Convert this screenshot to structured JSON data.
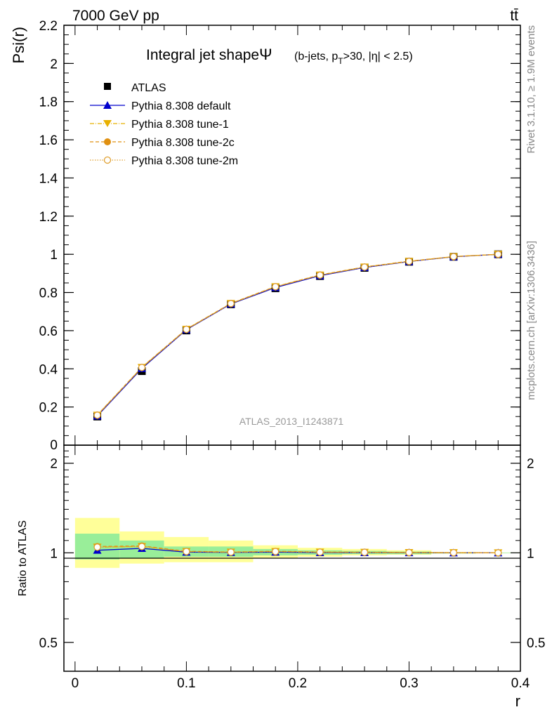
{
  "header": {
    "energy_label": "7000 GeV pp",
    "process_label": "tt̄"
  },
  "side_text": {
    "rivet": "Rivet 3.1.10, ≥ 1.9M events",
    "mcplots": "mcplots.cern.ch [arXiv:1306.3436]"
  },
  "colors": {
    "atlas": "#000000",
    "default": "#0000cc",
    "tune1": "#e8b000",
    "tune2c": "#e09010",
    "tune2m": "#e0a030",
    "band_inner": "#99ee99",
    "band_outer": "#ffff99"
  },
  "chart_data": [
    {
      "type": "line",
      "title": "Integral jet shape",
      "title_symbol": "Ψ",
      "subtitle_prefix": "(b-jets, p",
      "subtitle_sub": "T",
      "subtitle_suffix": ">30, |η| < 2.5)",
      "ylabel": "Psi(r)",
      "xlim": [
        -0.01,
        0.4
      ],
      "ylim": [
        0,
        2.2
      ],
      "yticks": [
        0.2,
        0.4,
        0.6,
        0.8,
        1,
        1.2,
        1.4,
        1.6,
        1.8,
        2,
        2.2
      ],
      "ytick_labels": [
        "0.2",
        "0.4",
        "0.6",
        "0.8",
        "1",
        "1.2",
        "1.4",
        "1.6",
        "1.8",
        "2",
        "2.2"
      ],
      "watermark": "ATLAS_2013_I1243871",
      "legend_position": "top-left",
      "x": [
        0.02,
        0.06,
        0.1,
        0.14,
        0.18,
        0.22,
        0.26,
        0.3,
        0.34,
        0.38
      ],
      "series": [
        {
          "name": "ATLAS",
          "marker": "square",
          "values": [
            0.15,
            0.388,
            0.601,
            0.738,
            0.822,
            0.886,
            0.929,
            0.961,
            0.987,
            1.0
          ]
        },
        {
          "name": "Pythia 8.308 default",
          "marker": "triangle",
          "line": "solid",
          "values": [
            0.153,
            0.402,
            0.605,
            0.74,
            0.826,
            0.888,
            0.931,
            0.962,
            0.987,
            1.0
          ]
        },
        {
          "name": "Pythia 8.308 tune-1",
          "marker": "triangle-down",
          "line": "dashdot",
          "values": [
            0.157,
            0.407,
            0.607,
            0.742,
            0.83,
            0.891,
            0.933,
            0.963,
            0.988,
            1.0
          ]
        },
        {
          "name": "Pythia 8.308 tune-2c",
          "marker": "circle",
          "line": "dashed",
          "values": [
            0.158,
            0.408,
            0.608,
            0.743,
            0.831,
            0.892,
            0.934,
            0.964,
            0.988,
            1.0
          ]
        },
        {
          "name": "Pythia 8.308 tune-2m",
          "marker": "circle-open",
          "line": "dotted",
          "values": [
            0.157,
            0.407,
            0.607,
            0.742,
            0.83,
            0.891,
            0.933,
            0.963,
            0.988,
            1.0
          ]
        }
      ]
    },
    {
      "type": "line",
      "ylabel": "Ratio to ATLAS",
      "xlabel": "r",
      "xlim": [
        -0.01,
        0.4
      ],
      "ylim": [
        0.4,
        2.3
      ],
      "log_y": true,
      "yticks": [
        0.5,
        1,
        2
      ],
      "ytick_labels": [
        "0.5",
        "1",
        "2"
      ],
      "xticks": [
        0,
        0.1,
        0.2,
        0.3,
        0.4
      ],
      "xtick_labels": [
        "0",
        "0.1",
        "0.2",
        "0.3",
        "0.4"
      ],
      "bins": [
        [
          0,
          0.04
        ],
        [
          0.04,
          0.08
        ],
        [
          0.08,
          0.12
        ],
        [
          0.12,
          0.16
        ],
        [
          0.16,
          0.2
        ],
        [
          0.2,
          0.24
        ],
        [
          0.24,
          0.28
        ],
        [
          0.28,
          0.32
        ],
        [
          0.32,
          0.36
        ],
        [
          0.36,
          0.4
        ]
      ],
      "band_inner": [
        [
          0.95,
          1.16
        ],
        [
          0.96,
          1.1
        ],
        [
          0.97,
          1.05
        ],
        [
          0.97,
          1.05
        ],
        [
          0.98,
          1.03
        ],
        [
          0.985,
          1.02
        ],
        [
          0.99,
          1.015
        ],
        [
          0.99,
          1.01
        ],
        [
          0.995,
          1.005
        ],
        [
          0.998,
          1.002
        ]
      ],
      "band_outer": [
        [
          0.89,
          1.31
        ],
        [
          0.92,
          1.18
        ],
        [
          0.93,
          1.13
        ],
        [
          0.93,
          1.1
        ],
        [
          0.96,
          1.06
        ],
        [
          0.97,
          1.04
        ],
        [
          0.98,
          1.03
        ],
        [
          0.985,
          1.02
        ],
        [
          0.995,
          1.005
        ],
        [
          0.998,
          1.002
        ]
      ],
      "x": [
        0.02,
        0.06,
        0.1,
        0.14,
        0.18,
        0.22,
        0.26,
        0.3,
        0.34,
        0.38
      ],
      "series": [
        {
          "name": "Pythia 8.308 default",
          "values": [
            1.02,
            1.035,
            1.005,
            1.003,
            1.005,
            1.002,
            1.002,
            1.001,
            1.0,
            1.0
          ]
        },
        {
          "name": "Pythia 8.308 tune-1",
          "values": [
            1.045,
            1.05,
            1.01,
            1.005,
            1.01,
            1.005,
            1.004,
            1.002,
            1.001,
            1.0
          ]
        },
        {
          "name": "Pythia 8.308 tune-2c",
          "values": [
            1.05,
            1.055,
            1.012,
            1.006,
            1.012,
            1.006,
            1.005,
            1.003,
            1.001,
            1.0
          ]
        },
        {
          "name": "Pythia 8.308 tune-2m",
          "values": [
            1.045,
            1.05,
            1.01,
            1.005,
            1.01,
            1.005,
            1.004,
            1.002,
            1.001,
            1.0
          ]
        }
      ]
    }
  ]
}
